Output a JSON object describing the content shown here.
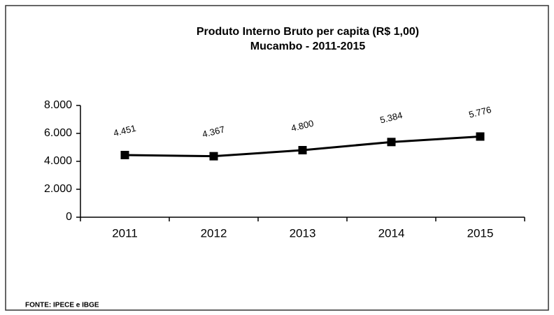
{
  "chart_data": {
    "type": "line",
    "title": "Produto Interno Bruto per capita (R$ 1,00)",
    "subtitle": "Mucambo - 2011-2015",
    "source": "FONTE: IPECE e IBGE",
    "categories": [
      "2011",
      "2012",
      "2013",
      "2014",
      "2015"
    ],
    "values": [
      4451,
      4367,
      4800,
      5384,
      5776
    ],
    "value_labels": [
      "4.451",
      "4.367",
      "4.800",
      "5.384",
      "5.776"
    ],
    "color": "#000000",
    "ylim": [
      0,
      8000
    ],
    "yticks": [
      0,
      {
        "value": 2000,
        "label": "2.000"
      },
      {
        "value": 4000,
        "label": "4.000"
      },
      {
        "value": 6000,
        "label": "6.000"
      },
      {
        "value": 8000,
        "label": "8.000"
      }
    ]
  }
}
